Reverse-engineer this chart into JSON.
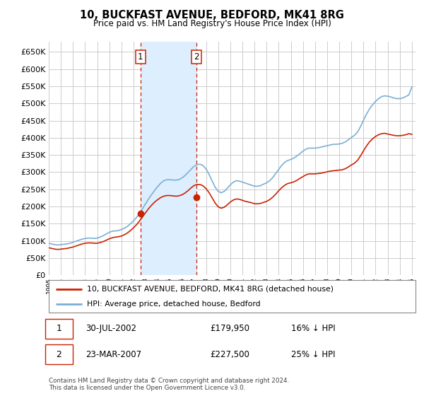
{
  "title": "10, BUCKFAST AVENUE, BEDFORD, MK41 8RG",
  "subtitle": "Price paid vs. HM Land Registry's House Price Index (HPI)",
  "hpi_label": "HPI: Average price, detached house, Bedford",
  "property_label": "10, BUCKFAST AVENUE, BEDFORD, MK41 8RG (detached house)",
  "transaction1_date": "30-JUL-2002",
  "transaction1_price": 179950,
  "transaction1_note": "16% ↓ HPI",
  "transaction2_date": "23-MAR-2007",
  "transaction2_price": 227500,
  "transaction2_note": "25% ↓ HPI",
  "footer": "Contains HM Land Registry data © Crown copyright and database right 2024.\nThis data is licensed under the Open Government Licence v3.0.",
  "ylim": [
    0,
    680000
  ],
  "yticks": [
    0,
    50000,
    100000,
    150000,
    200000,
    250000,
    300000,
    350000,
    400000,
    450000,
    500000,
    550000,
    600000,
    650000
  ],
  "hpi_color": "#7bafd4",
  "property_color": "#cc2200",
  "shade_color": "#ddeeff",
  "grid_color": "#cccccc",
  "bg_color": "#ffffff",
  "transaction1_x": 2002.58,
  "transaction2_x": 2007.2,
  "hpi_data": [
    [
      1995.0,
      93000
    ],
    [
      1995.25,
      91000
    ],
    [
      1995.5,
      89000
    ],
    [
      1995.75,
      88000
    ],
    [
      1996.0,
      89000
    ],
    [
      1996.25,
      90000
    ],
    [
      1996.5,
      91000
    ],
    [
      1996.75,
      93000
    ],
    [
      1997.0,
      96000
    ],
    [
      1997.25,
      99000
    ],
    [
      1997.5,
      102000
    ],
    [
      1997.75,
      105000
    ],
    [
      1998.0,
      107000
    ],
    [
      1998.25,
      108000
    ],
    [
      1998.5,
      108000
    ],
    [
      1998.75,
      107000
    ],
    [
      1999.0,
      108000
    ],
    [
      1999.25,
      111000
    ],
    [
      1999.5,
      115000
    ],
    [
      1999.75,
      120000
    ],
    [
      2000.0,
      125000
    ],
    [
      2000.25,
      128000
    ],
    [
      2000.5,
      129000
    ],
    [
      2000.75,
      130000
    ],
    [
      2001.0,
      133000
    ],
    [
      2001.25,
      137000
    ],
    [
      2001.5,
      142000
    ],
    [
      2001.75,
      150000
    ],
    [
      2002.0,
      158000
    ],
    [
      2002.25,
      168000
    ],
    [
      2002.5,
      180000
    ],
    [
      2002.75,
      194000
    ],
    [
      2003.0,
      208000
    ],
    [
      2003.25,
      222000
    ],
    [
      2003.5,
      235000
    ],
    [
      2003.75,
      247000
    ],
    [
      2004.0,
      258000
    ],
    [
      2004.25,
      268000
    ],
    [
      2004.5,
      275000
    ],
    [
      2004.75,
      278000
    ],
    [
      2005.0,
      278000
    ],
    [
      2005.25,
      277000
    ],
    [
      2005.5,
      277000
    ],
    [
      2005.75,
      278000
    ],
    [
      2006.0,
      283000
    ],
    [
      2006.25,
      290000
    ],
    [
      2006.5,
      299000
    ],
    [
      2006.75,
      308000
    ],
    [
      2007.0,
      317000
    ],
    [
      2007.25,
      322000
    ],
    [
      2007.5,
      323000
    ],
    [
      2007.75,
      319000
    ],
    [
      2008.0,
      309000
    ],
    [
      2008.25,
      293000
    ],
    [
      2008.5,
      274000
    ],
    [
      2008.75,
      256000
    ],
    [
      2009.0,
      244000
    ],
    [
      2009.25,
      240000
    ],
    [
      2009.5,
      244000
    ],
    [
      2009.75,
      253000
    ],
    [
      2010.0,
      263000
    ],
    [
      2010.25,
      271000
    ],
    [
      2010.5,
      275000
    ],
    [
      2010.75,
      274000
    ],
    [
      2011.0,
      271000
    ],
    [
      2011.25,
      268000
    ],
    [
      2011.5,
      265000
    ],
    [
      2011.75,
      262000
    ],
    [
      2012.0,
      259000
    ],
    [
      2012.25,
      259000
    ],
    [
      2012.5,
      261000
    ],
    [
      2012.75,
      265000
    ],
    [
      2013.0,
      269000
    ],
    [
      2013.25,
      275000
    ],
    [
      2013.5,
      284000
    ],
    [
      2013.75,
      296000
    ],
    [
      2014.0,
      308000
    ],
    [
      2014.25,
      320000
    ],
    [
      2014.5,
      329000
    ],
    [
      2014.75,
      334000
    ],
    [
      2015.0,
      337000
    ],
    [
      2015.25,
      341000
    ],
    [
      2015.5,
      347000
    ],
    [
      2015.75,
      354000
    ],
    [
      2016.0,
      361000
    ],
    [
      2016.25,
      367000
    ],
    [
      2016.5,
      370000
    ],
    [
      2016.75,
      370000
    ],
    [
      2017.0,
      370000
    ],
    [
      2017.25,
      371000
    ],
    [
      2017.5,
      373000
    ],
    [
      2017.75,
      375000
    ],
    [
      2018.0,
      377000
    ],
    [
      2018.25,
      379000
    ],
    [
      2018.5,
      381000
    ],
    [
      2018.75,
      381000
    ],
    [
      2019.0,
      382000
    ],
    [
      2019.25,
      384000
    ],
    [
      2019.5,
      388000
    ],
    [
      2019.75,
      394000
    ],
    [
      2020.0,
      401000
    ],
    [
      2020.25,
      407000
    ],
    [
      2020.5,
      416000
    ],
    [
      2020.75,
      432000
    ],
    [
      2021.0,
      451000
    ],
    [
      2021.25,
      469000
    ],
    [
      2021.5,
      484000
    ],
    [
      2021.75,
      496000
    ],
    [
      2022.0,
      506000
    ],
    [
      2022.25,
      514000
    ],
    [
      2022.5,
      520000
    ],
    [
      2022.75,
      522000
    ],
    [
      2023.0,
      521000
    ],
    [
      2023.25,
      519000
    ],
    [
      2023.5,
      516000
    ],
    [
      2023.75,
      514000
    ],
    [
      2024.0,
      514000
    ],
    [
      2024.25,
      516000
    ],
    [
      2024.5,
      520000
    ],
    [
      2024.75,
      525000
    ],
    [
      2025.0,
      548000
    ]
  ],
  "property_data": [
    [
      1995.0,
      80000
    ],
    [
      1995.25,
      78000
    ],
    [
      1995.5,
      76000
    ],
    [
      1995.75,
      75000
    ],
    [
      1996.0,
      76000
    ],
    [
      1996.25,
      77000
    ],
    [
      1996.5,
      78000
    ],
    [
      1996.75,
      80000
    ],
    [
      1997.0,
      82000
    ],
    [
      1997.25,
      85000
    ],
    [
      1997.5,
      88000
    ],
    [
      1997.75,
      91000
    ],
    [
      1998.0,
      93000
    ],
    [
      1998.25,
      94000
    ],
    [
      1998.5,
      94000
    ],
    [
      1998.75,
      93000
    ],
    [
      1999.0,
      93000
    ],
    [
      1999.25,
      95000
    ],
    [
      1999.5,
      98000
    ],
    [
      1999.75,
      102000
    ],
    [
      2000.0,
      106000
    ],
    [
      2000.25,
      109000
    ],
    [
      2000.5,
      111000
    ],
    [
      2000.75,
      112000
    ],
    [
      2001.0,
      114000
    ],
    [
      2001.25,
      118000
    ],
    [
      2001.5,
      123000
    ],
    [
      2001.75,
      130000
    ],
    [
      2002.0,
      138000
    ],
    [
      2002.25,
      147000
    ],
    [
      2002.5,
      158000
    ],
    [
      2002.75,
      170000
    ],
    [
      2003.0,
      182000
    ],
    [
      2003.25,
      194000
    ],
    [
      2003.5,
      204000
    ],
    [
      2003.75,
      213000
    ],
    [
      2004.0,
      220000
    ],
    [
      2004.25,
      226000
    ],
    [
      2004.5,
      230000
    ],
    [
      2004.75,
      232000
    ],
    [
      2005.0,
      232000
    ],
    [
      2005.25,
      231000
    ],
    [
      2005.5,
      230000
    ],
    [
      2005.75,
      231000
    ],
    [
      2006.0,
      234000
    ],
    [
      2006.25,
      239000
    ],
    [
      2006.5,
      246000
    ],
    [
      2006.75,
      254000
    ],
    [
      2007.0,
      261000
    ],
    [
      2007.25,
      264000
    ],
    [
      2007.5,
      264000
    ],
    [
      2007.75,
      260000
    ],
    [
      2008.0,
      252000
    ],
    [
      2008.25,
      240000
    ],
    [
      2008.5,
      225000
    ],
    [
      2008.75,
      210000
    ],
    [
      2009.0,
      199000
    ],
    [
      2009.25,
      195000
    ],
    [
      2009.5,
      198000
    ],
    [
      2009.75,
      205000
    ],
    [
      2010.0,
      213000
    ],
    [
      2010.25,
      219000
    ],
    [
      2010.5,
      222000
    ],
    [
      2010.75,
      221000
    ],
    [
      2011.0,
      218000
    ],
    [
      2011.25,
      215000
    ],
    [
      2011.5,
      213000
    ],
    [
      2011.75,
      211000
    ],
    [
      2012.0,
      208000
    ],
    [
      2012.25,
      208000
    ],
    [
      2012.5,
      209000
    ],
    [
      2012.75,
      212000
    ],
    [
      2013.0,
      215000
    ],
    [
      2013.25,
      220000
    ],
    [
      2013.5,
      227000
    ],
    [
      2013.75,
      236000
    ],
    [
      2014.0,
      246000
    ],
    [
      2014.25,
      255000
    ],
    [
      2014.5,
      262000
    ],
    [
      2014.75,
      267000
    ],
    [
      2015.0,
      269000
    ],
    [
      2015.25,
      272000
    ],
    [
      2015.5,
      276000
    ],
    [
      2015.75,
      282000
    ],
    [
      2016.0,
      287000
    ],
    [
      2016.25,
      292000
    ],
    [
      2016.5,
      295000
    ],
    [
      2016.75,
      295000
    ],
    [
      2017.0,
      295000
    ],
    [
      2017.25,
      296000
    ],
    [
      2017.5,
      297000
    ],
    [
      2017.75,
      299000
    ],
    [
      2018.0,
      301000
    ],
    [
      2018.25,
      303000
    ],
    [
      2018.5,
      304000
    ],
    [
      2018.75,
      305000
    ],
    [
      2019.0,
      306000
    ],
    [
      2019.25,
      307000
    ],
    [
      2019.5,
      310000
    ],
    [
      2019.75,
      315000
    ],
    [
      2020.0,
      321000
    ],
    [
      2020.25,
      326000
    ],
    [
      2020.5,
      334000
    ],
    [
      2020.75,
      347000
    ],
    [
      2021.0,
      362000
    ],
    [
      2021.25,
      376000
    ],
    [
      2021.5,
      388000
    ],
    [
      2021.75,
      397000
    ],
    [
      2022.0,
      404000
    ],
    [
      2022.25,
      409000
    ],
    [
      2022.5,
      412000
    ],
    [
      2022.75,
      413000
    ],
    [
      2023.0,
      411000
    ],
    [
      2023.25,
      409000
    ],
    [
      2023.5,
      407000
    ],
    [
      2023.75,
      406000
    ],
    [
      2024.0,
      406000
    ],
    [
      2024.25,
      407000
    ],
    [
      2024.5,
      409000
    ],
    [
      2024.75,
      412000
    ],
    [
      2025.0,
      410000
    ]
  ]
}
